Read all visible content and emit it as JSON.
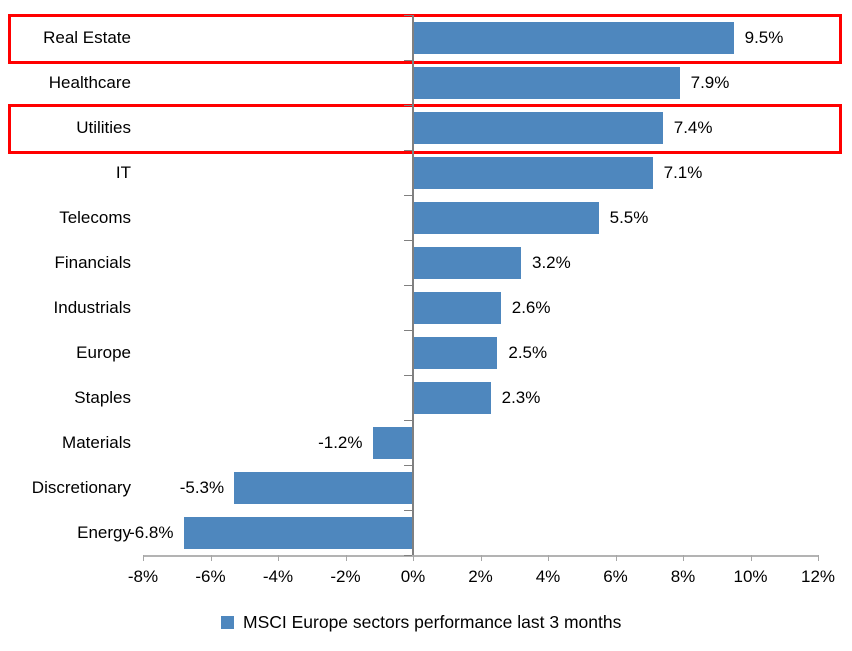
{
  "chart_data": {
    "type": "bar",
    "orientation": "horizontal",
    "categories": [
      "Real Estate",
      "Healthcare",
      "Utilities",
      "IT",
      "Telecoms",
      "Financials",
      "Industrials",
      "Europe",
      "Staples",
      "Materials",
      "Discretionary",
      "Energy"
    ],
    "values": [
      9.5,
      7.9,
      7.4,
      7.1,
      5.5,
      3.2,
      2.6,
      2.5,
      2.3,
      -1.2,
      -5.3,
      -6.8
    ],
    "data_labels": [
      "9.5%",
      "7.9%",
      "7.4%",
      "7.1%",
      "5.5%",
      "3.2%",
      "2.6%",
      "2.5%",
      "2.3%",
      "-1.2%",
      "-5.3%",
      "-6.8%"
    ],
    "x_axis": {
      "min": -8,
      "max": 12,
      "step": 2,
      "tick_labels": [
        "-8%",
        "-6%",
        "-4%",
        "-2%",
        "0%",
        "2%",
        "4%",
        "6%",
        "8%",
        "10%",
        "12%"
      ]
    },
    "legend": {
      "label": "MSCI Europe sectors performance last 3 months",
      "position": "bottom"
    },
    "bar_color": "#4e87be",
    "highlight": {
      "color": "#ff0000",
      "categories": [
        "Real Estate",
        "Utilities"
      ]
    },
    "grid": false,
    "background_color": "#ffffff"
  }
}
